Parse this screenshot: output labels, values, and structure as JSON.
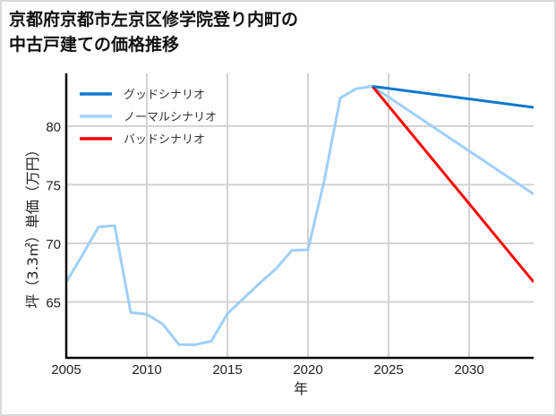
{
  "title": {
    "line1": "京都府京都市左京区修学院登り内町の",
    "line2": "中古戸建ての価格推移"
  },
  "chart_data": {
    "type": "line",
    "title": "京都府京都市左京区修学院登り内町の中古戸建ての価格推移",
    "xlabel": "年",
    "ylabel": "坪（3.3㎡）単価（万円）",
    "xlim": [
      2005,
      2034
    ],
    "ylim": [
      60.3,
      84.5
    ],
    "xticks": [
      2005,
      2010,
      2015,
      2020,
      2025,
      2030
    ],
    "yticks": [
      65,
      70,
      75,
      80
    ],
    "grid": true,
    "legend_position": "upper left",
    "series": [
      {
        "name": "グッドシナリオ",
        "color": "#0a78cf",
        "x": [
          2024,
          2034
        ],
        "values": [
          83.4,
          81.6
        ]
      },
      {
        "name": "ノーマルシナリオ",
        "color": "#9fcff8",
        "x": [
          2005,
          2006,
          2007,
          2008,
          2009,
          2010,
          2011,
          2012,
          2013,
          2014,
          2015,
          2016,
          2017,
          2018,
          2019,
          2020,
          2021,
          2022,
          2023,
          2024,
          2025,
          2026,
          2027,
          2028,
          2029,
          2030,
          2031,
          2032,
          2033,
          2034
        ],
        "values": [
          66.7,
          69.0,
          71.4,
          71.5,
          64.1,
          63.95,
          63.1,
          61.35,
          61.35,
          61.65,
          64.0,
          65.3,
          66.6,
          67.8,
          69.4,
          69.45,
          75.3,
          82.4,
          83.2,
          83.4,
          82.48,
          81.56,
          80.64,
          79.72,
          78.8,
          77.88,
          76.96,
          76.04,
          75.12,
          74.2
        ]
      },
      {
        "name": "バッドシナリオ",
        "color": "#ff0000",
        "x": [
          2024,
          2034
        ],
        "values": [
          83.4,
          66.7
        ]
      }
    ]
  }
}
